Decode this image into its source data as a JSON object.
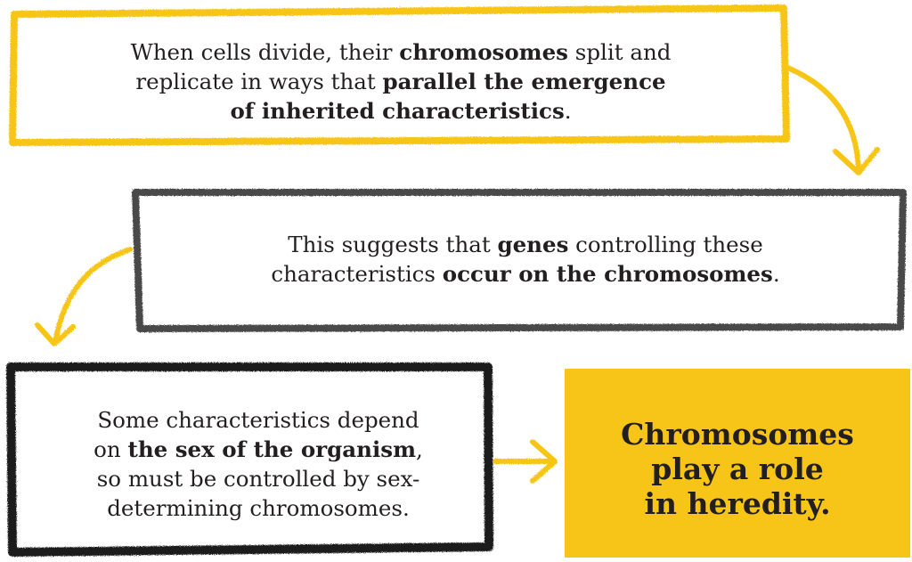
{
  "boxes": [
    {
      "id": "box1",
      "border_color": "#f6c518",
      "segments": [
        {
          "text": "When cells divide, their ",
          "bold": false
        },
        {
          "text": "chromosomes",
          "bold": true
        },
        {
          "text": " split and",
          "bold": false
        },
        {
          "br": true
        },
        {
          "text": "replicate in ways that ",
          "bold": false
        },
        {
          "text": "parallel the emergence",
          "bold": true
        },
        {
          "br": true
        },
        {
          "text": "of inherited characteristics",
          "bold": true
        },
        {
          "text": ".",
          "bold": false
        }
      ]
    },
    {
      "id": "box2",
      "border_color": "#4a4a4a",
      "segments": [
        {
          "text": "This suggests that ",
          "bold": false
        },
        {
          "text": "genes",
          "bold": true
        },
        {
          "text": " controlling these",
          "bold": false
        },
        {
          "br": true
        },
        {
          "text": "characteristics ",
          "bold": false
        },
        {
          "text": "occur on the chromosomes",
          "bold": true
        },
        {
          "text": ".",
          "bold": false
        }
      ]
    },
    {
      "id": "box3",
      "border_color": "#1a1a1a",
      "segments": [
        {
          "text": "Some characteristics depend",
          "bold": false
        },
        {
          "br": true
        },
        {
          "text": "on ",
          "bold": false
        },
        {
          "text": "the sex of the organism",
          "bold": true
        },
        {
          "text": ",",
          "bold": false
        },
        {
          "br": true
        },
        {
          "text": "so must be controlled by sex-",
          "bold": false
        },
        {
          "br": true
        },
        {
          "text": "determining chromosomes.",
          "bold": false
        }
      ]
    }
  ],
  "conclusion": {
    "text": "Chromosomes\nplay a role\nin heredity.",
    "background": "#f6c518"
  },
  "arrows": {
    "color": "#f6c518"
  }
}
